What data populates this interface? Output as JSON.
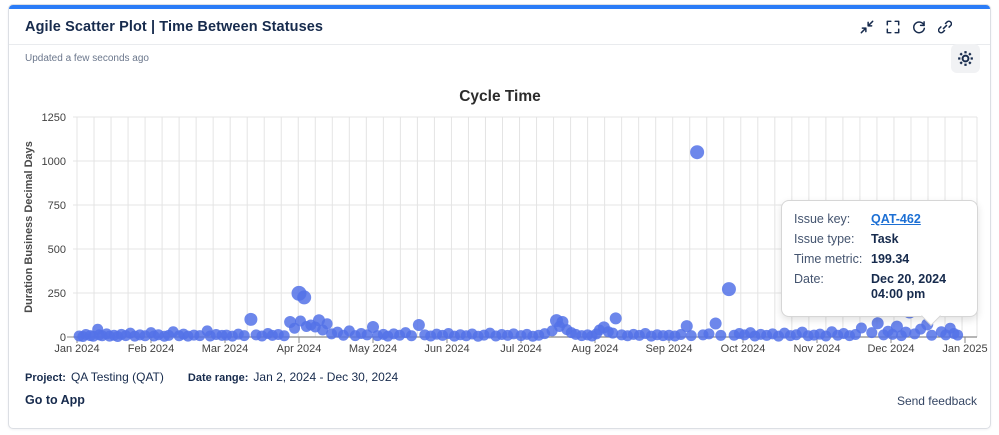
{
  "header": {
    "title": "Agile Scatter Plot | Time Between Statuses",
    "updated": "Updated a few seconds ago",
    "icons": [
      "collapse-icon",
      "fullscreen-icon",
      "refresh-icon",
      "link-icon",
      "settings-icon"
    ]
  },
  "colors": {
    "accent": "#2b7cf7",
    "point": "#5472e8",
    "hover_ring": "#6c7480",
    "navy_text": "#172b4d",
    "muted_text": "#6b778c",
    "link_blue": "#1c6fd4",
    "gridline": "#e4e4e4",
    "axis": "#8a8a8a"
  },
  "chart_data": {
    "type": "scatter",
    "title": "Cycle Time",
    "xlabel": "",
    "ylabel": "Duration Business Decimal Days",
    "y_ticks": [
      0,
      250,
      500,
      750,
      1000,
      1250
    ],
    "ylim": [
      0,
      1250
    ],
    "x_tick_labels": [
      "Jan 2024",
      "Feb 2024",
      "Mar 2024",
      "Apr 2024",
      "May 2024",
      "Jun 2024",
      "Jul 2024",
      "Aug 2024",
      "Sep 2024",
      "Oct 2024",
      "Nov 2024",
      "Dec 2024",
      "Jan 2025"
    ],
    "grid": "vertical weekly lines + horizontal lines at y ticks",
    "legend": "none",
    "point_color": "#5472e8",
    "points_format": "[months_since_jan_2024, duration_business_days, radius_px(optional), 'hover'(optional)]",
    "points": [
      [
        0.03,
        6
      ],
      [
        0.08,
        3
      ],
      [
        0.12,
        14
      ],
      [
        0.18,
        8
      ],
      [
        0.22,
        4
      ],
      [
        0.28,
        44
      ],
      [
        0.3,
        12
      ],
      [
        0.34,
        7
      ],
      [
        0.4,
        18
      ],
      [
        0.44,
        5
      ],
      [
        0.5,
        10
      ],
      [
        0.55,
        3
      ],
      [
        0.6,
        15
      ],
      [
        0.66,
        8
      ],
      [
        0.72,
        22
      ],
      [
        0.78,
        5
      ],
      [
        0.85,
        12
      ],
      [
        0.92,
        7
      ],
      [
        1.0,
        25
      ],
      [
        1.04,
        6
      ],
      [
        1.1,
        13
      ],
      [
        1.18,
        4
      ],
      [
        1.24,
        9
      ],
      [
        1.3,
        30
      ],
      [
        1.38,
        7
      ],
      [
        1.44,
        16
      ],
      [
        1.5,
        5
      ],
      [
        1.58,
        11
      ],
      [
        1.66,
        8
      ],
      [
        1.76,
        35
      ],
      [
        1.8,
        6
      ],
      [
        1.88,
        14
      ],
      [
        1.96,
        9
      ],
      [
        2.02,
        11
      ],
      [
        2.1,
        5
      ],
      [
        2.18,
        16
      ],
      [
        2.26,
        8
      ],
      [
        2.35,
        100,
        6.5
      ],
      [
        2.42,
        12
      ],
      [
        2.5,
        6
      ],
      [
        2.58,
        20
      ],
      [
        2.64,
        9
      ],
      [
        2.72,
        14
      ],
      [
        2.8,
        7
      ],
      [
        2.88,
        85,
        6
      ],
      [
        2.94,
        50
      ],
      [
        3.0,
        248,
        7.5
      ],
      [
        3.07,
        225,
        7
      ],
      [
        3.02,
        91
      ],
      [
        3.1,
        60
      ],
      [
        3.16,
        68
      ],
      [
        3.22,
        57
      ],
      [
        3.27,
        95,
        6
      ],
      [
        3.32,
        40
      ],
      [
        3.38,
        75
      ],
      [
        3.44,
        18
      ],
      [
        3.52,
        28
      ],
      [
        3.6,
        10
      ],
      [
        3.68,
        35
      ],
      [
        3.76,
        8
      ],
      [
        3.84,
        20
      ],
      [
        3.92,
        12
      ],
      [
        4.0,
        57,
        6
      ],
      [
        4.06,
        8
      ],
      [
        4.14,
        15
      ],
      [
        4.2,
        5
      ],
      [
        4.28,
        18
      ],
      [
        4.36,
        10
      ],
      [
        4.44,
        25
      ],
      [
        4.52,
        7
      ],
      [
        4.62,
        68,
        6
      ],
      [
        4.7,
        12
      ],
      [
        4.78,
        6
      ],
      [
        4.86,
        16
      ],
      [
        4.94,
        9
      ],
      [
        5.02,
        20
      ],
      [
        5.1,
        5
      ],
      [
        5.18,
        13
      ],
      [
        5.26,
        7
      ],
      [
        5.34,
        17
      ],
      [
        5.42,
        4
      ],
      [
        5.5,
        11
      ],
      [
        5.58,
        22
      ],
      [
        5.66,
        6
      ],
      [
        5.74,
        14
      ],
      [
        5.82,
        9
      ],
      [
        5.9,
        18
      ],
      [
        6.0,
        8
      ],
      [
        6.08,
        15
      ],
      [
        6.16,
        4
      ],
      [
        6.24,
        10
      ],
      [
        6.32,
        19
      ],
      [
        6.42,
        35
      ],
      [
        6.48,
        93,
        6.5
      ],
      [
        6.52,
        60
      ],
      [
        6.56,
        85,
        6
      ],
      [
        6.62,
        42
      ],
      [
        6.68,
        25
      ],
      [
        6.74,
        15
      ],
      [
        6.82,
        8
      ],
      [
        6.9,
        12
      ],
      [
        6.96,
        6
      ],
      [
        7.02,
        18
      ],
      [
        7.06,
        40
      ],
      [
        7.12,
        55,
        6
      ],
      [
        7.18,
        30
      ],
      [
        7.24,
        22
      ],
      [
        7.28,
        106,
        6
      ],
      [
        7.36,
        12
      ],
      [
        7.44,
        7
      ],
      [
        7.52,
        15
      ],
      [
        7.6,
        9
      ],
      [
        7.68,
        20
      ],
      [
        7.76,
        5
      ],
      [
        7.84,
        13
      ],
      [
        7.92,
        8
      ],
      [
        8.0,
        10
      ],
      [
        8.08,
        6
      ],
      [
        8.16,
        14
      ],
      [
        8.24,
        62,
        6
      ],
      [
        8.3,
        8
      ],
      [
        8.38,
        1050,
        7
      ],
      [
        8.46,
        12
      ],
      [
        8.54,
        18
      ],
      [
        8.63,
        77,
        6
      ],
      [
        8.7,
        9
      ],
      [
        8.81,
        272,
        7
      ],
      [
        8.88,
        10
      ],
      [
        8.95,
        20
      ],
      [
        9.02,
        12
      ],
      [
        9.1,
        25
      ],
      [
        9.16,
        6
      ],
      [
        9.24,
        15
      ],
      [
        9.32,
        9
      ],
      [
        9.4,
        18
      ],
      [
        9.48,
        5
      ],
      [
        9.56,
        22
      ],
      [
        9.64,
        8
      ],
      [
        9.72,
        13
      ],
      [
        9.8,
        28
      ],
      [
        9.88,
        7
      ],
      [
        9.96,
        11
      ],
      [
        10.04,
        16
      ],
      [
        10.12,
        6
      ],
      [
        10.2,
        30
      ],
      [
        10.28,
        10
      ],
      [
        10.36,
        20
      ],
      [
        10.44,
        8
      ],
      [
        10.52,
        14
      ],
      [
        10.6,
        51
      ],
      [
        10.66,
        172,
        6.5
      ],
      [
        10.74,
        25
      ],
      [
        10.82,
        78,
        6
      ],
      [
        10.9,
        12
      ],
      [
        10.96,
        33
      ],
      [
        11.02,
        15
      ],
      [
        11.08,
        59,
        6
      ],
      [
        11.14,
        8
      ],
      [
        11.2,
        28
      ],
      [
        11.25,
        142,
        6.5
      ],
      [
        11.32,
        18
      ],
      [
        11.4,
        45
      ],
      [
        11.49,
        72,
        6
      ],
      [
        11.55,
        10
      ],
      [
        11.62,
        199.34,
        8.5,
        "hover"
      ],
      [
        11.68,
        30
      ],
      [
        11.74,
        12
      ],
      [
        11.8,
        50
      ],
      [
        11.85,
        20
      ],
      [
        11.9,
        11
      ]
    ],
    "hovered_point": {
      "issue_key": "QAT-462",
      "months_since_jan_2024": 11.62,
      "value": 199.34
    }
  },
  "tooltip": {
    "rows": [
      {
        "label": "Issue key:",
        "value": "QAT-462",
        "is_link": true
      },
      {
        "label": "Issue type:",
        "value": "Task"
      },
      {
        "label": "Time metric:",
        "value": "199.34"
      },
      {
        "label": "Date:",
        "value": "Dec 20, 2024 04:00 pm"
      }
    ]
  },
  "footer": {
    "project_label": "Project:",
    "project_value": "QA Testing (QAT)",
    "date_range_label": "Date range:",
    "date_range_value": "Jan 2, 2024 - Dec 30, 2024",
    "go_to_app": "Go to App",
    "send_feedback": "Send feedback"
  }
}
